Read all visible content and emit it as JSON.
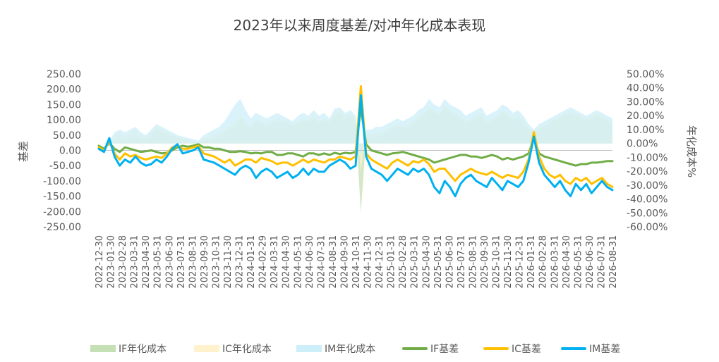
{
  "chart_data": {
    "type": "line",
    "title": "2023年以来周度基差/对冲年化成本表现",
    "ylabel": "基差",
    "y2label": "年化成本%",
    "ylim": [
      -250,
      250
    ],
    "y2lim": [
      -60,
      50
    ],
    "yticks": [
      "250.00",
      "200.00",
      "150.00",
      "100.00",
      "50.00",
      "0.00",
      "-50.00",
      "-100.00",
      "-150.00",
      "-200.00",
      "-250.00"
    ],
    "y2ticks": [
      "50.00%",
      "40.00%",
      "30.00%",
      "20.00%",
      "10.00%",
      "0.00%",
      "-10.00%",
      "-20.00%",
      "-30.00%",
      "-40.00%",
      "-50.00%",
      "-60.00%"
    ],
    "xticks": [
      "2022-12-30",
      "2023-01-30",
      "2023-02-28",
      "2023-03-31",
      "2023-04-30",
      "2023-05-31",
      "2023-06-30",
      "2023-07-31",
      "2023-08-31",
      "2023-09-30",
      "2023-10-31",
      "2023-11-30",
      "2023-12-31",
      "2024-01-31",
      "2024-02-29",
      "2024-03-31",
      "2024-04-30",
      "2024-05-31",
      "2024-06-30",
      "2024-07-31",
      "2024-08-31",
      "2024-09-30",
      "2024-10-31",
      "2024-11-30",
      "2024-12-31",
      "2025-01-31",
      "2025-02-28",
      "2025-03-31",
      "2025-04-30",
      "2025-05-31",
      "2025-06-30",
      "2025-07-31",
      "2025-08-31",
      "2025-09-30",
      "2025-10-31",
      "2025-11-30",
      "2025-12-31",
      "2026-01-31",
      "2026-02-28",
      "2026-03-31",
      "2026-04-30",
      "2026-05-31",
      "2026-06-30",
      "2026-07-31",
      "2026-08-31"
    ],
    "series": [
      {
        "name": "IF基差",
        "kind": "line",
        "axis": "left",
        "color": "#70AD47",
        "values": [
          15,
          5,
          25,
          5,
          -5,
          10,
          5,
          0,
          -5,
          -3,
          0,
          -5,
          -10,
          -8,
          0,
          10,
          15,
          12,
          15,
          20,
          10,
          10,
          5,
          5,
          0,
          -5,
          -5,
          -3,
          -5,
          -10,
          -8,
          -10,
          -5,
          -5,
          -15,
          -15,
          -10,
          -10,
          -15,
          -20,
          -10,
          -10,
          -15,
          -10,
          -15,
          -8,
          -12,
          -8,
          -10,
          -5,
          140,
          20,
          0,
          -5,
          -10,
          -15,
          -10,
          -8,
          -5,
          -10,
          -15,
          -20,
          -25,
          -30,
          -40,
          -35,
          -30,
          -25,
          -20,
          -15,
          -15,
          -20,
          -20,
          -25,
          -20,
          -15,
          -20,
          -30,
          -25,
          -30,
          -25,
          -20,
          -10,
          40,
          -10,
          -20,
          -25,
          -30,
          -35,
          -40,
          -45,
          -50,
          -45,
          -45,
          -40,
          -40,
          -38,
          -35,
          -35
        ]
      },
      {
        "name": "IC基差",
        "kind": "line",
        "axis": "left",
        "color": "#FFC000",
        "values": [
          10,
          0,
          30,
          -10,
          -30,
          -10,
          -20,
          -15,
          -25,
          -30,
          -25,
          -20,
          -25,
          -10,
          10,
          15,
          5,
          5,
          10,
          15,
          -10,
          -15,
          -20,
          -30,
          -40,
          -30,
          -50,
          -40,
          -30,
          -30,
          -40,
          -25,
          -30,
          -35,
          -45,
          -40,
          -40,
          -50,
          -40,
          -30,
          -40,
          -30,
          -35,
          -40,
          -30,
          -30,
          -20,
          -25,
          -30,
          -20,
          210,
          -10,
          -30,
          -40,
          -50,
          -60,
          -40,
          -30,
          -40,
          -50,
          -35,
          -40,
          -30,
          -45,
          -70,
          -60,
          -60,
          -80,
          -100,
          -80,
          -70,
          -60,
          -70,
          -75,
          -80,
          -70,
          -80,
          -90,
          -80,
          -85,
          -90,
          -70,
          -30,
          60,
          -20,
          -60,
          -80,
          -90,
          -80,
          -100,
          -110,
          -90,
          -100,
          -90,
          -110,
          -100,
          -90,
          -110,
          -120
        ]
      },
      {
        "name": "IM基差",
        "kind": "line",
        "axis": "left",
        "color": "#00B0F0",
        "values": [
          5,
          -5,
          40,
          -20,
          -50,
          -30,
          -40,
          -20,
          -40,
          -50,
          -45,
          -30,
          -40,
          -20,
          5,
          20,
          -10,
          -5,
          0,
          10,
          -30,
          -35,
          -40,
          -50,
          -60,
          -70,
          -80,
          -60,
          -50,
          -60,
          -90,
          -70,
          -60,
          -70,
          -90,
          -80,
          -70,
          -90,
          -80,
          -60,
          -80,
          -60,
          -70,
          -70,
          -50,
          -40,
          -30,
          -40,
          -60,
          -50,
          180,
          -20,
          -60,
          -70,
          -80,
          -100,
          -80,
          -60,
          -70,
          -80,
          -60,
          -70,
          -60,
          -80,
          -120,
          -140,
          -100,
          -120,
          -150,
          -110,
          -90,
          -80,
          -100,
          -110,
          -120,
          -90,
          -110,
          -130,
          -100,
          -110,
          -120,
          -100,
          -40,
          45,
          -40,
          -80,
          -100,
          -120,
          -100,
          -130,
          -150,
          -110,
          -130,
          -110,
          -140,
          -120,
          -100,
          -120,
          -130
        ]
      },
      {
        "name": "IF年化成本",
        "kind": "area",
        "axis": "right",
        "color": "#C5E0B4",
        "values": [
          0,
          0,
          -2,
          2,
          3,
          2,
          4,
          5,
          3,
          2,
          5,
          10,
          8,
          6,
          5,
          4,
          3,
          2,
          1,
          0,
          2,
          2,
          3,
          5,
          8,
          10,
          12,
          18,
          14,
          10,
          16,
          14,
          12,
          14,
          16,
          15,
          15,
          12,
          14,
          16,
          15,
          18,
          14,
          16,
          15,
          20,
          22,
          18,
          20,
          15,
          -50,
          5,
          4,
          6,
          5,
          8,
          10,
          12,
          10,
          12,
          14,
          18,
          20,
          24,
          22,
          20,
          26,
          22,
          20,
          18,
          14,
          16,
          18,
          20,
          14,
          16,
          18,
          22,
          20,
          16,
          18,
          15,
          10,
          5,
          10,
          12,
          14,
          16,
          18,
          20,
          22,
          20,
          18,
          16,
          18,
          20,
          18,
          16,
          14
        ]
      },
      {
        "name": "IC年化成本",
        "kind": "area",
        "axis": "right",
        "color": "#FFF2CC",
        "values": [
          0,
          0,
          0,
          5,
          8,
          5,
          8,
          10,
          6,
          5,
          8,
          12,
          10,
          8,
          6,
          5,
          4,
          3,
          2,
          0,
          4,
          4,
          6,
          8,
          10,
          12,
          15,
          20,
          16,
          12,
          18,
          15,
          14,
          16,
          18,
          17,
          16,
          14,
          16,
          18,
          17,
          20,
          16,
          18,
          16,
          22,
          24,
          20,
          22,
          18,
          -20,
          8,
          6,
          8,
          8,
          10,
          12,
          14,
          12,
          14,
          16,
          20,
          22,
          26,
          24,
          22,
          28,
          24,
          22,
          20,
          16,
          18,
          20,
          22,
          16,
          18,
          20,
          24,
          22,
          18,
          20,
          17,
          12,
          8,
          12,
          14,
          16,
          18,
          20,
          22,
          24,
          22,
          20,
          18,
          20,
          22,
          20,
          18,
          16
        ]
      },
      {
        "name": "IM年化成本",
        "kind": "area",
        "axis": "right",
        "color": "#CDEFFA",
        "values": [
          0,
          0,
          2,
          8,
          10,
          8,
          10,
          12,
          8,
          6,
          10,
          14,
          12,
          10,
          8,
          6,
          5,
          4,
          3,
          2,
          6,
          8,
          10,
          12,
          16,
          22,
          28,
          32,
          24,
          18,
          22,
          20,
          18,
          20,
          22,
          20,
          18,
          16,
          20,
          22,
          20,
          24,
          20,
          22,
          18,
          25,
          26,
          22,
          24,
          20,
          -10,
          10,
          10,
          12,
          12,
          14,
          16,
          18,
          16,
          18,
          20,
          24,
          26,
          32,
          28,
          26,
          32,
          28,
          26,
          24,
          20,
          22,
          24,
          26,
          20,
          22,
          24,
          28,
          26,
          22,
          24,
          20,
          14,
          10,
          14,
          16,
          18,
          20,
          22,
          24,
          26,
          24,
          22,
          20,
          22,
          24,
          22,
          20,
          18
        ]
      }
    ]
  }
}
